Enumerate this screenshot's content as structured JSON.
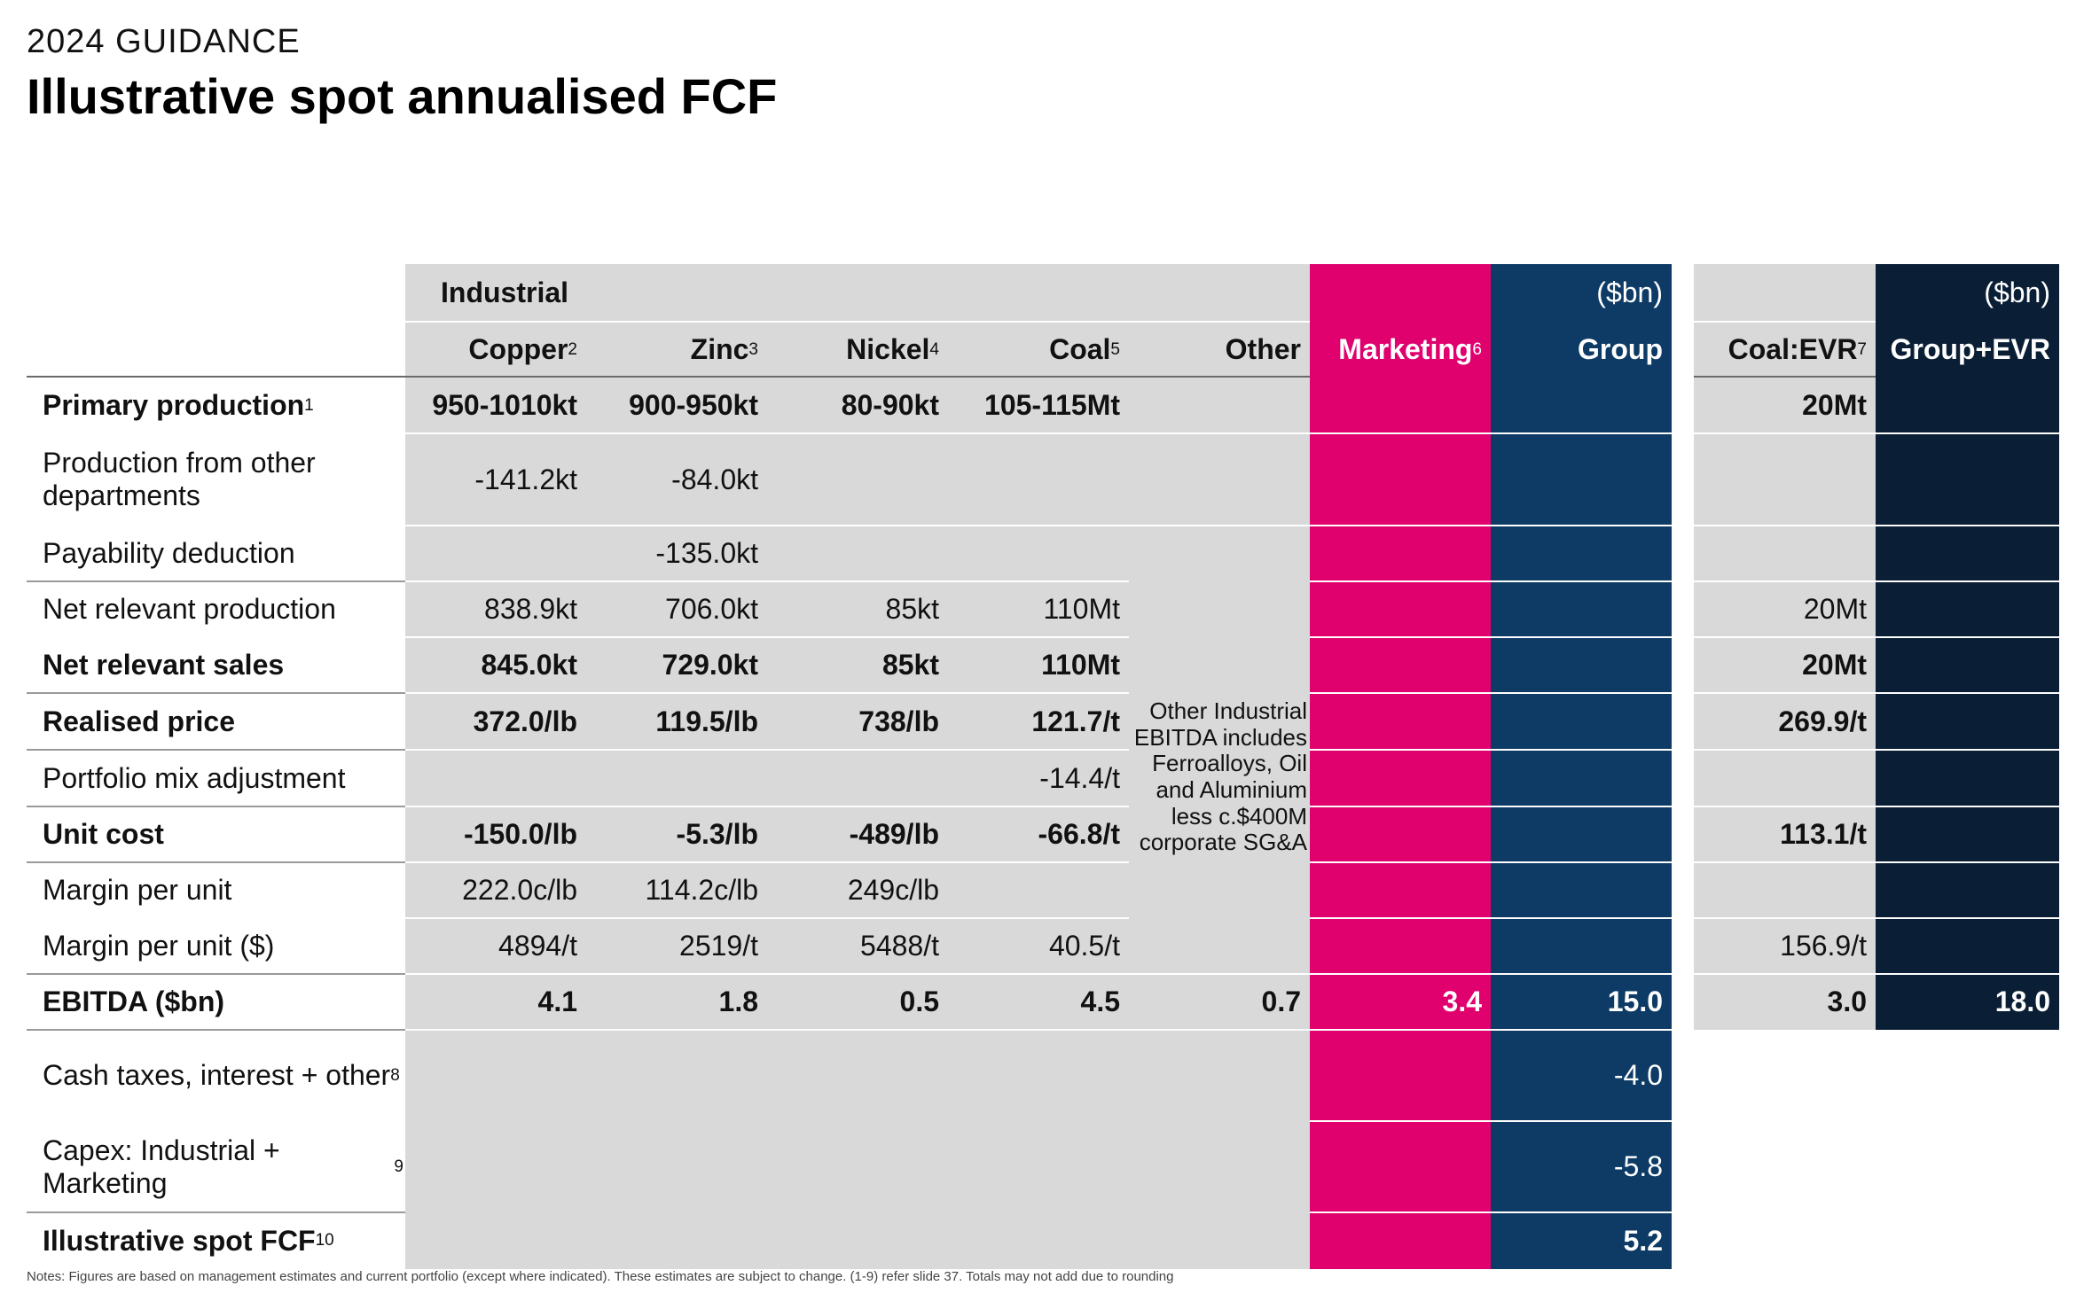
{
  "header": {
    "kicker": "2024 GUIDANCE",
    "title": "Illustrative spot annualised FCF"
  },
  "colors": {
    "grey": "#d9d9d9",
    "marketing": "#e0006e",
    "group": "#0d3b66",
    "group_evr": "#0a1f36"
  },
  "table": {
    "header_industrial": "Industrial",
    "header_unit_group": "($bn)",
    "header_unit_evr": "($bn)",
    "columns": [
      {
        "key": "copper",
        "label": "Copper",
        "sup": "2"
      },
      {
        "key": "zinc",
        "label": "Zinc",
        "sup": "3"
      },
      {
        "key": "nickel",
        "label": "Nickel",
        "sup": "4"
      },
      {
        "key": "coal",
        "label": "Coal",
        "sup": "5"
      },
      {
        "key": "other",
        "label": "Other",
        "sup": ""
      },
      {
        "key": "marketing",
        "label": "Marketing",
        "sup": "6"
      },
      {
        "key": "group",
        "label": "Group",
        "sup": ""
      },
      {
        "key": "coal_evr",
        "label": "Coal:EVR",
        "sup": "7"
      },
      {
        "key": "group_evr",
        "label": "Group+EVR",
        "sup": ""
      }
    ],
    "rows": [
      {
        "label": "Primary production",
        "sup": "1",
        "bold": true,
        "values": [
          "950-1010kt",
          "900-950kt",
          "80-90kt",
          "105-115Mt",
          "",
          "",
          "",
          "20Mt",
          ""
        ]
      },
      {
        "label": "Production from other departments",
        "sup": "",
        "bold": false,
        "values": [
          "-141.2kt",
          "-84.0kt",
          "",
          "",
          "",
          "",
          "",
          "",
          ""
        ]
      },
      {
        "label": "Payability deduction",
        "sup": "",
        "bold": false,
        "values": [
          "",
          "-135.0kt",
          "",
          "",
          "",
          "",
          "",
          "",
          ""
        ]
      },
      {
        "label": "Net relevant production",
        "sup": "",
        "bold": false,
        "values": [
          "838.9kt",
          "706.0kt",
          "85kt",
          "110Mt",
          "",
          "",
          "",
          "20Mt",
          ""
        ]
      },
      {
        "label": "Net relevant sales",
        "sup": "",
        "bold": true,
        "values": [
          "845.0kt",
          "729.0kt",
          "85kt",
          "110Mt",
          "",
          "",
          "",
          "20Mt",
          ""
        ]
      },
      {
        "label": "Realised price",
        "sup": "",
        "bold": true,
        "values": [
          "372.0/lb",
          "119.5/lb",
          "738/lb",
          "121.7/t",
          "",
          "",
          "",
          "269.9/t",
          ""
        ]
      },
      {
        "label": "Portfolio mix adjustment",
        "sup": "",
        "bold": false,
        "values": [
          "",
          "",
          "",
          "-14.4/t",
          "",
          "",
          "",
          "",
          ""
        ]
      },
      {
        "label": "Unit cost",
        "sup": "",
        "bold": true,
        "values": [
          "-150.0/lb",
          "-5.3/lb",
          "-489/lb",
          "-66.8/t",
          "",
          "",
          "",
          "113.1/t",
          ""
        ]
      },
      {
        "label": "Margin per unit",
        "sup": "",
        "bold": false,
        "values": [
          "222.0c/lb",
          "114.2c/lb",
          "249c/lb",
          "",
          "",
          "",
          "",
          "",
          ""
        ]
      },
      {
        "label": "Margin per unit ($)",
        "sup": "",
        "bold": false,
        "values": [
          "4894/t",
          "2519/t",
          "5488/t",
          "40.5/t",
          "",
          "",
          "",
          "156.9/t",
          ""
        ]
      },
      {
        "label": "EBITDA ($bn)",
        "sup": "",
        "bold": true,
        "values": [
          "4.1",
          "1.8",
          "0.5",
          "4.5",
          "0.7",
          "3.4",
          "15.0",
          "3.0",
          "18.0"
        ]
      },
      {
        "label": "Cash taxes, interest + other",
        "sup": "8",
        "bold": false,
        "values": [
          "",
          "",
          "",
          "",
          "",
          "",
          "-4.0",
          "",
          ""
        ]
      },
      {
        "label": "Capex: Industrial + Marketing",
        "sup": "9",
        "bold": false,
        "values": [
          "",
          "",
          "",
          "",
          "",
          "",
          "-5.8",
          "",
          ""
        ]
      },
      {
        "label": "Illustrative spot FCF",
        "sup": "10",
        "bold": true,
        "values": [
          "",
          "",
          "",
          "",
          "",
          "",
          "5.2",
          "",
          ""
        ]
      }
    ],
    "other_note": "Other Industrial EBITDA includes Ferroalloys, Oil and Aluminium less c.$400M corporate SG&A"
  },
  "footnote": "Notes: Figures are based on management estimates and current portfolio (except where indicated). These estimates are subject to change. (1-9) refer slide 37. Totals may not add due to rounding"
}
